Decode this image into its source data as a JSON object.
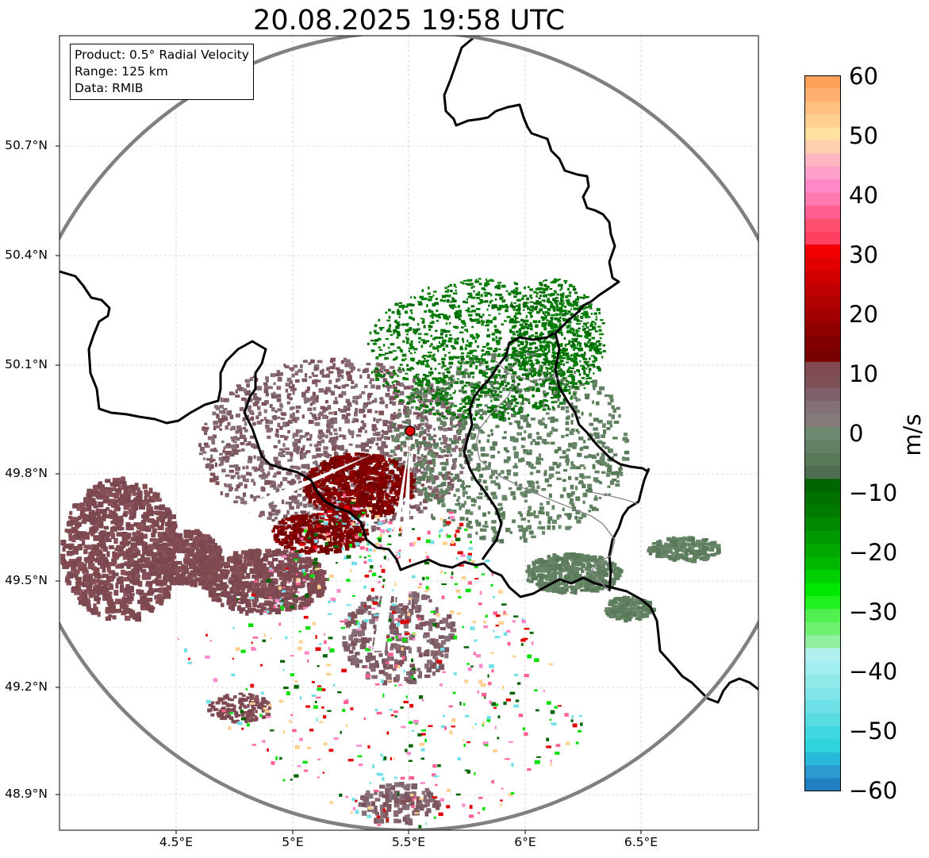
{
  "title": "20.08.2025 19:58 UTC",
  "info_box": {
    "product": "Product: 0.5° Radial Velocity",
    "range": "Range: 125 km",
    "data": "Data: RMIB"
  },
  "map": {
    "lon_range": [
      4.0,
      7.0
    ],
    "lat_range": [
      48.8,
      50.98
    ],
    "radar_site": {
      "lon": 5.505,
      "lat": 49.914
    },
    "range_ring_color": "#808080",
    "border_color": "#000000",
    "grid": true
  },
  "latitude_ticks": [
    "50.7°N",
    "50.4°N",
    "50.1°N",
    "49.8°N",
    "49.5°N",
    "49.2°N",
    "48.9°N"
  ],
  "longitude_ticks": [
    "4.5°E",
    "5°E",
    "5.5°E",
    "6°E",
    "6.5°E"
  ],
  "colorbar": {
    "unit": "m/s",
    "range": [
      -60,
      60
    ],
    "tick_labels": [
      "60",
      "50",
      "40",
      "30",
      "20",
      "10",
      "0",
      "−10",
      "−20",
      "−30",
      "−40",
      "−50",
      "−60"
    ],
    "colors_top_to_bottom": [
      "#ffa05a",
      "#ffb070",
      "#ffc080",
      "#ffd090",
      "#ffe0a0",
      "#ffd0b0",
      "#ffb6c1",
      "#ffa0c8",
      "#ff88c8",
      "#ff78b0",
      "#ff6090",
      "#ff5070",
      "#ff4060",
      "#f00000",
      "#e00000",
      "#d00000",
      "#c00000",
      "#b00000",
      "#a00000",
      "#900000",
      "#800000",
      "#7a0000",
      "#804a50",
      "#7e5058",
      "#806068",
      "#847078",
      "#857a7a",
      "#6f8a70",
      "#648064",
      "#587a58",
      "#4f6e4f",
      "#006400",
      "#007000",
      "#007c00",
      "#008a00",
      "#009800",
      "#00a800",
      "#00b800",
      "#00d000",
      "#00e800",
      "#20f020",
      "#50f050",
      "#70f070",
      "#90f0a0",
      "#b0f0f0",
      "#a0eef0",
      "#90e8e8",
      "#80e4e8",
      "#6ce0e4",
      "#58dce0",
      "#40d8e0",
      "#30d4dc",
      "#28b8d8",
      "#2c9ad0",
      "#2080c0"
    ]
  }
}
